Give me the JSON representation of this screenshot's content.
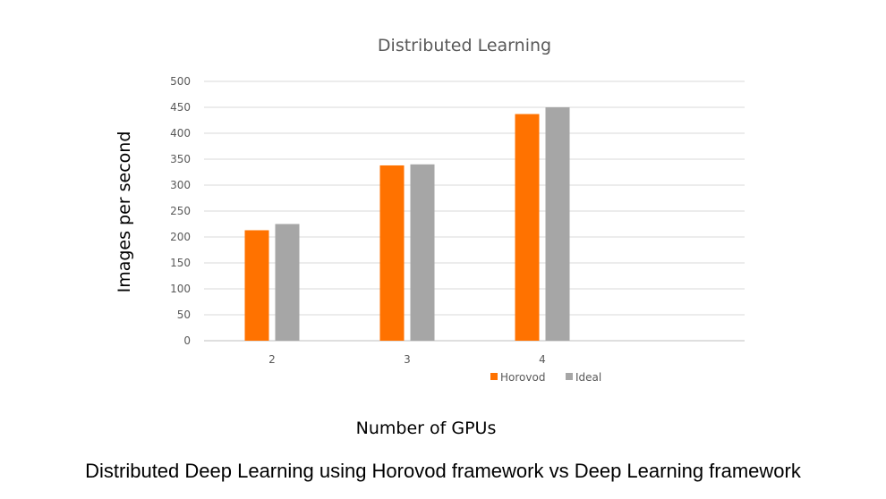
{
  "chart_data": {
    "type": "bar",
    "title": "Distributed Learning",
    "xlabel": "Number of GPUs",
    "ylabel": "Images per second",
    "categories": [
      "2",
      "3",
      "4"
    ],
    "series": [
      {
        "name": "Horovod",
        "values": [
          213,
          338,
          437
        ],
        "color": "#ff7200"
      },
      {
        "name": "Ideal",
        "values": [
          225,
          340,
          450
        ],
        "color": "#a6a6a6"
      }
    ],
    "ylim": [
      0,
      500
    ],
    "yticks": [
      0,
      50,
      100,
      150,
      200,
      250,
      300,
      350,
      400,
      450,
      500
    ],
    "grid": true,
    "legend_position": "bottom-right"
  },
  "caption": "Distributed Deep Learning using Horovod framework vs Deep Learning framework"
}
